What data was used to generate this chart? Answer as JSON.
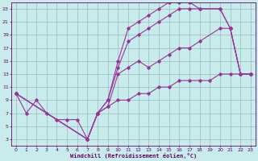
{
  "xlabel": "Windchill (Refroidissement éolien,°C)",
  "bg_color": "#c8ecec",
  "line_color": "#993399",
  "grid_color": "#99bbbb",
  "text_color": "#660066",
  "xlim": [
    -0.5,
    23.5
  ],
  "ylim": [
    2,
    24
  ],
  "xticks": [
    0,
    1,
    2,
    3,
    4,
    5,
    6,
    7,
    8,
    9,
    10,
    11,
    12,
    13,
    14,
    15,
    16,
    17,
    18,
    19,
    20,
    21,
    22,
    23
  ],
  "yticks": [
    3,
    5,
    7,
    9,
    11,
    13,
    15,
    17,
    19,
    21,
    23
  ],
  "line_bottom_x": [
    0,
    1,
    2,
    3,
    4,
    5,
    6,
    7,
    8,
    9,
    10,
    11,
    12,
    13,
    14,
    15,
    16,
    17,
    18,
    19,
    20,
    21,
    22,
    23
  ],
  "line_bottom_y": [
    10,
    7,
    9,
    7,
    6,
    6,
    6,
    3,
    7,
    8,
    9,
    9,
    10,
    10,
    11,
    11,
    12,
    12,
    12,
    12,
    13,
    13,
    13,
    13
  ],
  "line_mid_x": [
    0,
    7,
    8,
    9,
    10,
    11,
    12,
    13,
    14,
    15,
    16,
    17,
    18,
    20,
    21,
    22,
    23
  ],
  "line_mid_y": [
    10,
    3,
    7,
    8,
    13,
    14,
    15,
    14,
    15,
    16,
    17,
    17,
    18,
    20,
    20,
    13,
    13
  ],
  "line_upper_x": [
    0,
    7,
    8,
    9,
    10,
    11,
    12,
    13,
    14,
    15,
    16,
    17,
    18,
    20,
    21,
    22,
    23
  ],
  "line_upper_y": [
    10,
    3,
    7,
    9,
    14,
    18,
    19,
    20,
    21,
    22,
    23,
    23,
    23,
    23,
    20,
    13,
    13
  ],
  "line_top_x": [
    0,
    7,
    8,
    9,
    10,
    11,
    12,
    13,
    14,
    15,
    16,
    17,
    18,
    20,
    21,
    22,
    23
  ],
  "line_top_y": [
    10,
    3,
    7,
    9,
    15,
    20,
    21,
    22,
    23,
    24,
    24,
    24,
    23,
    23,
    20,
    13,
    13
  ]
}
